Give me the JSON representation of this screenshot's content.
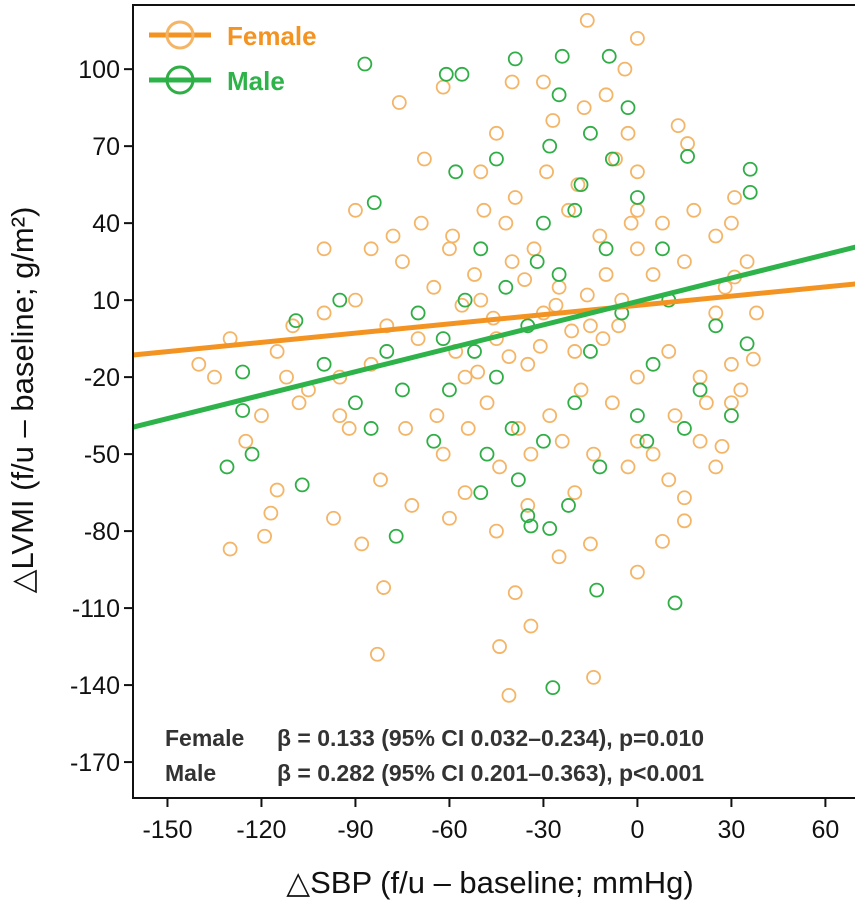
{
  "chart_data": {
    "type": "scatter",
    "xlabel": "△SBP (f/u – baseline; mmHg)",
    "ylabel": "△LVMI (f/u – baseline; g/m²)",
    "xlim": [
      -161,
      72
    ],
    "ylim": [
      -184,
      125
    ],
    "xticks": [
      -150,
      -120,
      -90,
      -60,
      -30,
      0,
      30,
      60
    ],
    "yticks": [
      100,
      70,
      40,
      10,
      -20,
      -50,
      -80,
      -110,
      -140,
      -170
    ],
    "legend_position": "top-left",
    "grid": false,
    "series": [
      {
        "name": "Female",
        "line_color": "#f39322",
        "marker_color": "#f4b567",
        "fit_line": [
          [
            -161,
            -11.4
          ],
          [
            72,
            16.6
          ]
        ],
        "stat_label": "Female",
        "stat_text": "β = 0.133 (95% CI 0.032–0.234), p=0.010",
        "points": [
          [
            -16,
            119
          ],
          [
            0,
            112
          ],
          [
            -76,
            87
          ],
          [
            -62,
            93
          ],
          [
            -130,
            -87
          ],
          [
            -119,
            -82
          ],
          [
            -115,
            -64
          ],
          [
            -117,
            -73
          ],
          [
            -81,
            -102
          ],
          [
            -83,
            -128
          ],
          [
            -44,
            -125
          ],
          [
            -41,
            -144
          ],
          [
            -34,
            -117
          ],
          [
            -39,
            -104
          ],
          [
            -14,
            -137
          ],
          [
            0,
            -96
          ],
          [
            8,
            -84
          ],
          [
            15,
            -76
          ],
          [
            15,
            -67
          ],
          [
            27,
            -47
          ],
          [
            37,
            -13
          ],
          [
            31,
            19
          ],
          [
            31,
            50
          ],
          [
            16,
            71
          ],
          [
            13,
            78
          ],
          [
            -5,
            10
          ],
          [
            -10,
            20
          ],
          [
            -15,
            0
          ],
          [
            -20,
            -10
          ],
          [
            -25,
            15
          ],
          [
            -30,
            5
          ],
          [
            -35,
            -15
          ],
          [
            -40,
            25
          ],
          [
            -45,
            -5
          ],
          [
            -50,
            10
          ],
          [
            -55,
            -20
          ],
          [
            -60,
            30
          ],
          [
            -2,
            40
          ],
          [
            -8,
            -30
          ],
          [
            -12,
            35
          ],
          [
            -18,
            -25
          ],
          [
            -22,
            45
          ],
          [
            -28,
            -35
          ],
          [
            -33,
            30
          ],
          [
            -38,
            -40
          ],
          [
            -42,
            40
          ],
          [
            -48,
            -30
          ],
          [
            -52,
            20
          ],
          [
            -58,
            -10
          ],
          [
            -65,
            15
          ],
          [
            -70,
            -5
          ],
          [
            -75,
            25
          ],
          [
            -80,
            0
          ],
          [
            -85,
            -15
          ],
          [
            -90,
            10
          ],
          [
            -95,
            -20
          ],
          [
            -100,
            5
          ],
          [
            -105,
            -25
          ],
          [
            -110,
            0
          ],
          [
            -115,
            -10
          ],
          [
            0,
            60
          ],
          [
            0,
            -20
          ],
          [
            0,
            30
          ],
          [
            0,
            -45
          ],
          [
            0,
            45
          ],
          [
            -3,
            -55
          ],
          [
            -7,
            65
          ],
          [
            -14,
            -50
          ],
          [
            -19,
            55
          ],
          [
            -24,
            -45
          ],
          [
            -29,
            60
          ],
          [
            -34,
            -50
          ],
          [
            -39,
            50
          ],
          [
            -44,
            -55
          ],
          [
            -49,
            45
          ],
          [
            -54,
            -40
          ],
          [
            -59,
            35
          ],
          [
            -64,
            -35
          ],
          [
            -69,
            40
          ],
          [
            -74,
            -40
          ],
          [
            5,
            20
          ],
          [
            10,
            -10
          ],
          [
            15,
            25
          ],
          [
            20,
            -20
          ],
          [
            25,
            5
          ],
          [
            8,
            40
          ],
          [
            12,
            -35
          ],
          [
            18,
            45
          ],
          [
            22,
            -30
          ],
          [
            28,
            15
          ],
          [
            33,
            -25
          ],
          [
            38,
            5
          ],
          [
            -6,
            0
          ],
          [
            -11,
            -5
          ],
          [
            -16,
            12
          ],
          [
            -21,
            -2
          ],
          [
            -26,
            8
          ],
          [
            -31,
            -8
          ],
          [
            -36,
            18
          ],
          [
            -41,
            -12
          ],
          [
            -46,
            3
          ],
          [
            -51,
            -18
          ],
          [
            -56,
            8
          ],
          [
            -3,
            75
          ],
          [
            -17,
            85
          ],
          [
            -27,
            80
          ],
          [
            -45,
            75
          ],
          [
            -50,
            60
          ],
          [
            -10,
            90
          ],
          [
            -30,
            95
          ],
          [
            -62,
            -50
          ],
          [
            -72,
            -70
          ],
          [
            -82,
            -60
          ],
          [
            -92,
            -40
          ],
          [
            -97,
            -75
          ],
          [
            -88,
            -85
          ],
          [
            -120,
            -35
          ],
          [
            -125,
            -45
          ],
          [
            -130,
            -5
          ],
          [
            -140,
            -15
          ],
          [
            -135,
            -20
          ],
          [
            -100,
            30
          ],
          [
            -90,
            45
          ],
          [
            -95,
            -35
          ],
          [
            -60,
            -75
          ],
          [
            -55,
            -65
          ],
          [
            -45,
            -80
          ],
          [
            -25,
            -90
          ],
          [
            -15,
            -85
          ],
          [
            -35,
            -70
          ],
          [
            -20,
            -65
          ],
          [
            5,
            -50
          ],
          [
            10,
            -60
          ],
          [
            20,
            -45
          ],
          [
            25,
            -55
          ],
          [
            30,
            -30
          ],
          [
            25,
            35
          ],
          [
            30,
            40
          ],
          [
            35,
            25
          ],
          [
            30,
            -15
          ],
          [
            -4,
            100
          ],
          [
            -40,
            95
          ],
          [
            -68,
            65
          ],
          [
            -78,
            35
          ],
          [
            -85,
            30
          ],
          [
            -108,
            -30
          ],
          [
            -112,
            -20
          ]
        ]
      },
      {
        "name": "Male",
        "line_color": "#2db34a",
        "marker_color": "#2fae46",
        "fit_line": [
          [
            -161,
            -39.5
          ],
          [
            72,
            31.4
          ]
        ],
        "stat_label": "Male",
        "stat_text": "β = 0.282 (95% CI 0.201–0.363), p<0.001",
        "points": [
          [
            -87,
            102
          ],
          [
            -131,
            -55
          ],
          [
            -123,
            -50
          ],
          [
            -107,
            -62
          ],
          [
            -27,
            -141
          ],
          [
            12,
            -108
          ],
          [
            -13,
            -103
          ],
          [
            36,
            61
          ],
          [
            36,
            52
          ],
          [
            16,
            66
          ],
          [
            -126,
            -18
          ],
          [
            -126,
            -33
          ],
          [
            -109,
            2
          ],
          [
            -39,
            104
          ],
          [
            -24,
            105
          ],
          [
            -9,
            105
          ],
          [
            -84,
            48
          ],
          [
            -61,
            98
          ],
          [
            -56,
            98
          ],
          [
            -77,
            -82
          ],
          [
            -35,
            -74
          ],
          [
            -28,
            -79
          ],
          [
            35,
            -7
          ],
          [
            -5,
            5
          ],
          [
            -15,
            -10
          ],
          [
            -25,
            20
          ],
          [
            -35,
            0
          ],
          [
            -45,
            -20
          ],
          [
            -55,
            10
          ],
          [
            -10,
            30
          ],
          [
            -20,
            -30
          ],
          [
            -30,
            40
          ],
          [
            -40,
            -40
          ],
          [
            -50,
            30
          ],
          [
            -60,
            -25
          ],
          [
            -70,
            5
          ],
          [
            -80,
            -10
          ],
          [
            -90,
            -30
          ],
          [
            -100,
            -15
          ],
          [
            0,
            -35
          ],
          [
            0,
            50
          ],
          [
            5,
            -15
          ],
          [
            10,
            10
          ],
          [
            15,
            -40
          ],
          [
            20,
            -25
          ],
          [
            25,
            0
          ],
          [
            30,
            -35
          ],
          [
            -8,
            65
          ],
          [
            -18,
            55
          ],
          [
            -28,
            70
          ],
          [
            -38,
            -60
          ],
          [
            -48,
            -50
          ],
          [
            -58,
            60
          ],
          [
            -65,
            -45
          ],
          [
            -75,
            -25
          ],
          [
            -85,
            -40
          ],
          [
            -95,
            10
          ],
          [
            -12,
            -55
          ],
          [
            -22,
            -70
          ],
          [
            -32,
            25
          ],
          [
            -42,
            15
          ],
          [
            -52,
            -10
          ],
          [
            -62,
            -5
          ],
          [
            3,
            -45
          ],
          [
            8,
            30
          ],
          [
            -3,
            85
          ],
          [
            -15,
            75
          ],
          [
            -25,
            90
          ],
          [
            -45,
            65
          ],
          [
            -30,
            -45
          ],
          [
            -20,
            45
          ],
          [
            -50,
            -65
          ],
          [
            -34,
            -78
          ]
        ]
      }
    ]
  }
}
